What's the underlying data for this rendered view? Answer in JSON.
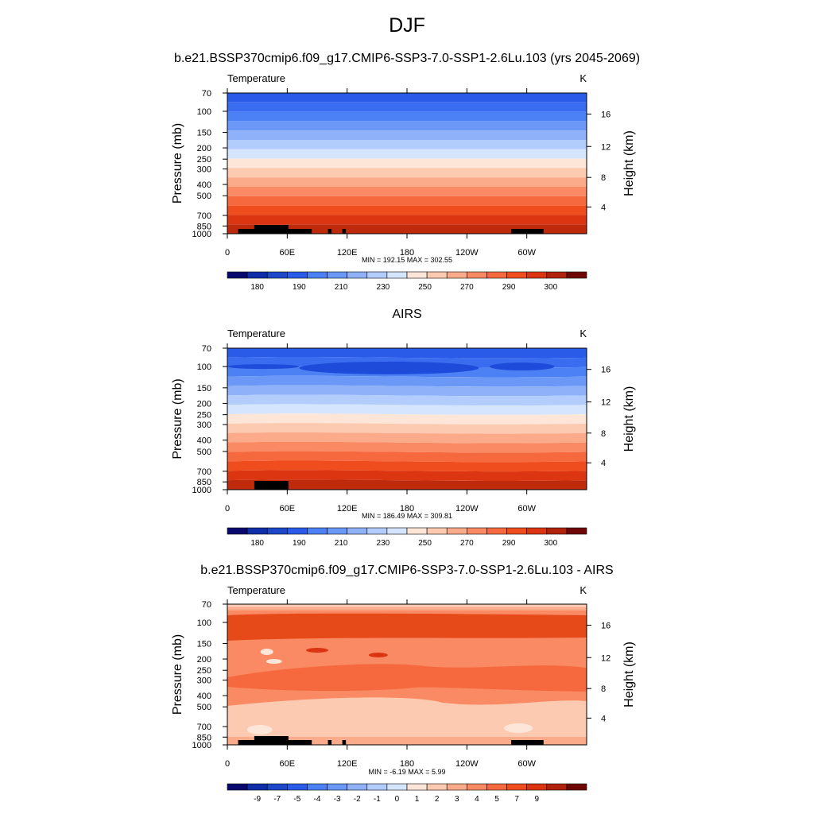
{
  "figure_title": "DJF",
  "chart_data": [
    {
      "type": "heatmap",
      "title": "b.e21.BSSP370cmip6.f09_g17.CMIP6-SSP3-7.0-SSP1-2.6Lu.103 (yrs 2045-2069)",
      "variable": "Temperature",
      "units": "K",
      "ylabel": "Pressure (mb)",
      "y2label": "Height (km)",
      "xticks": [
        "0",
        "60E",
        "120E",
        "180",
        "120W",
        "60W"
      ],
      "yticks": [
        "70",
        "100",
        "150",
        "200",
        "250",
        "300",
        "400",
        "500",
        "700",
        "850",
        "1000"
      ],
      "y2ticks": [
        "4",
        "8",
        "12",
        "16"
      ],
      "stats": "MIN = 192.15  MAX = 302.55",
      "colorbar_labels": [
        "180",
        "190",
        "210",
        "230",
        "250",
        "270",
        "290",
        "300"
      ],
      "colors": [
        "#2a5be8",
        "#3a6cf0",
        "#4c80f5",
        "#6b98f7",
        "#8fb1f9",
        "#b2ccfb",
        "#d5e5fd",
        "#fde6d8",
        "#fcc9b1",
        "#fbaa8a",
        "#f98a63",
        "#f6693f",
        "#f04d1f",
        "#dc3512",
        "#c02a0c"
      ],
      "note": ""
    },
    {
      "type": "heatmap",
      "title": "AIRS",
      "variable": "Temperature",
      "units": "K",
      "ylabel": "Pressure (mb)",
      "y2label": "Height (km)",
      "xticks": [
        "0",
        "60E",
        "120E",
        "180",
        "120W",
        "60W"
      ],
      "yticks": [
        "70",
        "100",
        "150",
        "200",
        "250",
        "300",
        "400",
        "500",
        "700",
        "850",
        "1000"
      ],
      "y2ticks": [
        "4",
        "8",
        "12",
        "16"
      ],
      "stats": "MIN = 186.49  MAX = 309.81",
      "colorbar_labels": [
        "180",
        "190",
        "210",
        "230",
        "250",
        "270",
        "290",
        "300"
      ],
      "colors": [
        "#2a5be8",
        "#3a6cf0",
        "#4c80f5",
        "#6b98f7",
        "#8fb1f9",
        "#b2ccfb",
        "#d5e5fd",
        "#fde6d8",
        "#fcc9b1",
        "#fbaa8a",
        "#f98a63",
        "#f6693f",
        "#f04d1f",
        "#dc3512",
        "#c02a0c"
      ]
    },
    {
      "type": "heatmap",
      "title": "b.e21.BSSP370cmip6.f09_g17.CMIP6-SSP3-7.0-SSP1-2.6Lu.103 - AIRS",
      "variable": "Temperature",
      "units": "K",
      "ylabel": "Pressure (mb)",
      "y2label": "Height (km)",
      "xticks": [
        "0",
        "60E",
        "120E",
        "180",
        "120W",
        "60W"
      ],
      "yticks": [
        "70",
        "100",
        "150",
        "200",
        "250",
        "300",
        "400",
        "500",
        "700",
        "850",
        "1000"
      ],
      "y2ticks": [
        "4",
        "8",
        "12",
        "16"
      ],
      "stats": "MIN =  -6.19  MAX =   5.99",
      "colorbar_labels": [
        "-9",
        "-7",
        "-5",
        "-4",
        "-3",
        "-2",
        "-1",
        "0",
        "1",
        "2",
        "3",
        "4",
        "5",
        "7",
        "9"
      ],
      "colors": [
        "#fde6d8",
        "#fcc9b1",
        "#f98a63",
        "#f6693f",
        "#f04d1f",
        "#dc3512"
      ]
    }
  ],
  "colorbar_temperature": [
    "#08086e",
    "#0d2ea6",
    "#1d47c9",
    "#2a5be8",
    "#4c80f5",
    "#6b98f7",
    "#8fb1f9",
    "#b2ccfb",
    "#d5e5fd",
    "#fde6d8",
    "#fcc9b1",
    "#fbaa8a",
    "#f98a63",
    "#f6693f",
    "#f04d1f",
    "#dc3512",
    "#b0220c",
    "#6e0606"
  ],
  "colorbar_diff": [
    "#08086e",
    "#0d2ea6",
    "#1d47c9",
    "#2a5be8",
    "#4c80f5",
    "#6b98f7",
    "#8fb1f9",
    "#b2ccfb",
    "#d5e5fd",
    "#fde6d8",
    "#fcc9b1",
    "#fbaa8a",
    "#f98a63",
    "#f6693f",
    "#f04d1f",
    "#dc3512",
    "#b0220c",
    "#6e0606"
  ]
}
